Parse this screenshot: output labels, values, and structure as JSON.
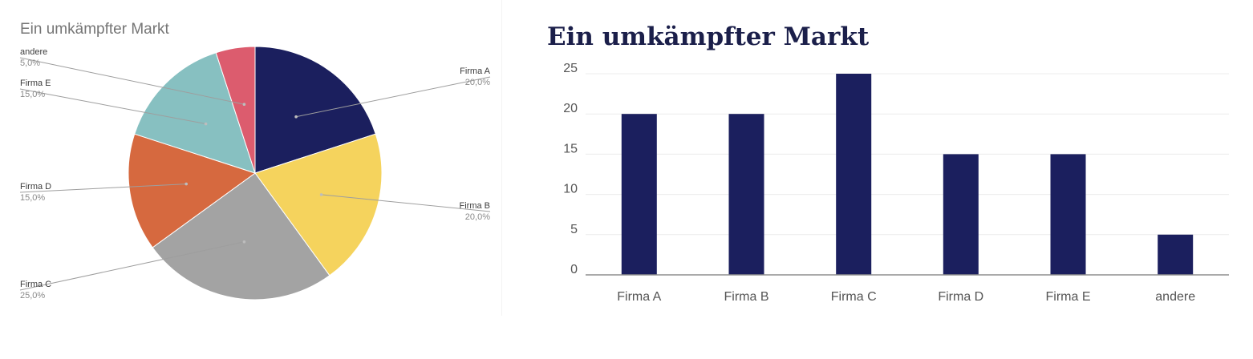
{
  "chart_data": [
    {
      "type": "pie",
      "title": "Ein umkämpfter Markt",
      "slices": [
        {
          "label": "Firma A",
          "value": 20,
          "display": "20,0%",
          "color": "#1b1f5e"
        },
        {
          "label": "Firma B",
          "value": 20,
          "display": "20,0%",
          "color": "#f5d35d"
        },
        {
          "label": "Firma C",
          "value": 25,
          "display": "25,0%",
          "color": "#a3a3a3"
        },
        {
          "label": "Firma D",
          "value": 15,
          "display": "15,0%",
          "color": "#d6693f"
        },
        {
          "label": "Firma E",
          "value": 15,
          "display": "15,0%",
          "color": "#87c0c1"
        },
        {
          "label": "andere",
          "value": 5,
          "display": "5,0%",
          "color": "#dc5c6e"
        }
      ]
    },
    {
      "type": "bar",
      "title": "Ein umkämpfter Markt",
      "categories": [
        "Firma A",
        "Firma B",
        "Firma C",
        "Firma D",
        "Firma E",
        "andere"
      ],
      "values": [
        20,
        20,
        25,
        15,
        15,
        5
      ],
      "ylim": [
        0,
        25
      ],
      "yticks": [
        0,
        5,
        10,
        15,
        20,
        25
      ],
      "grid": true,
      "bar_color": "#1b1f5e"
    }
  ]
}
